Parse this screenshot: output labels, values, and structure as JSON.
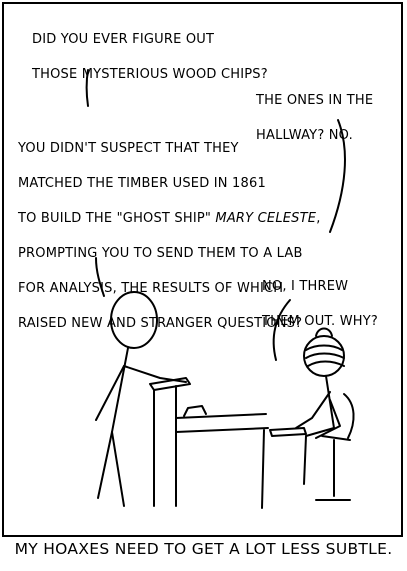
{
  "speech": {
    "bubble1": {
      "line1": "Did you ever figure out",
      "line2": "those mysterious wood chips?"
    },
    "bubble2": {
      "line1": "The ones in the",
      "line2": "hallway? No."
    },
    "bubble3": {
      "line1": "You didn't suspect that they",
      "line2": "matched the timber used in 1861",
      "line3_pre": "to build the \"ghost ship\" ",
      "line3_em": "Mary Celeste",
      "line3_post": ",",
      "line4": "prompting you to send them to a lab",
      "line5": "for analysis, the results of which",
      "line6": "raised new and stranger questions?"
    },
    "bubble4": {
      "line1": "No, I threw",
      "line2": "them out. Why?"
    }
  },
  "caption": "My hoaxes need to get a lot less subtle."
}
